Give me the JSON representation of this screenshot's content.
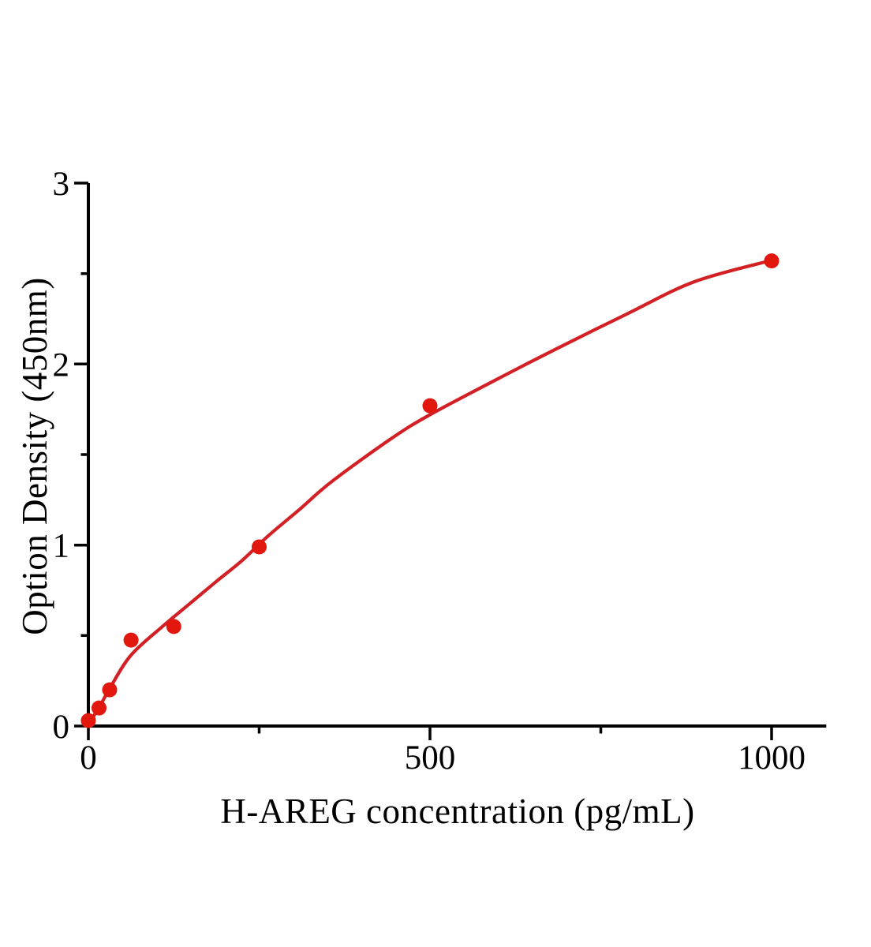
{
  "figure": {
    "background_color": "#ffffff",
    "title": ""
  },
  "chart_data": {
    "type": "scatter",
    "title": "",
    "xlabel": "H-AREG concentration (pg/mL)",
    "ylabel": "Option Density (450nm)",
    "xlim": [
      0,
      1080
    ],
    "ylim": [
      0,
      3
    ],
    "x_major_ticks": [
      0,
      500,
      1000
    ],
    "x_minor_ticks": [
      250,
      750
    ],
    "y_major_ticks": [
      0,
      1,
      2,
      3
    ],
    "y_minor_ticks": [
      0.5,
      1.5,
      2.5
    ],
    "grid": false,
    "legend_position": "none",
    "axis_color": "#000000",
    "series": [
      {
        "name": "standard-points",
        "type": "scatter",
        "marker": "circle",
        "color": "#e2170e",
        "points": [
          [
            0,
            0.03
          ],
          [
            15.6,
            0.1
          ],
          [
            31.2,
            0.2
          ],
          [
            62.5,
            0.475
          ],
          [
            125,
            0.55
          ],
          [
            250,
            0.99
          ],
          [
            500,
            1.77
          ],
          [
            1000,
            2.57
          ]
        ]
      },
      {
        "name": "fitted-curve",
        "type": "line",
        "color": "#d32025",
        "points": [
          [
            0,
            0.01
          ],
          [
            16,
            0.105
          ],
          [
            31,
            0.205
          ],
          [
            62,
            0.39
          ],
          [
            110,
            0.555
          ],
          [
            148,
            0.675
          ],
          [
            186,
            0.795
          ],
          [
            225,
            0.915
          ],
          [
            263,
            1.05
          ],
          [
            310,
            1.2
          ],
          [
            356,
            1.35
          ],
          [
            444,
            1.59
          ],
          [
            500,
            1.72
          ],
          [
            600,
            1.92
          ],
          [
            688,
            2.09
          ],
          [
            790,
            2.28
          ],
          [
            887,
            2.455
          ],
          [
            1000,
            2.573
          ]
        ]
      }
    ]
  }
}
